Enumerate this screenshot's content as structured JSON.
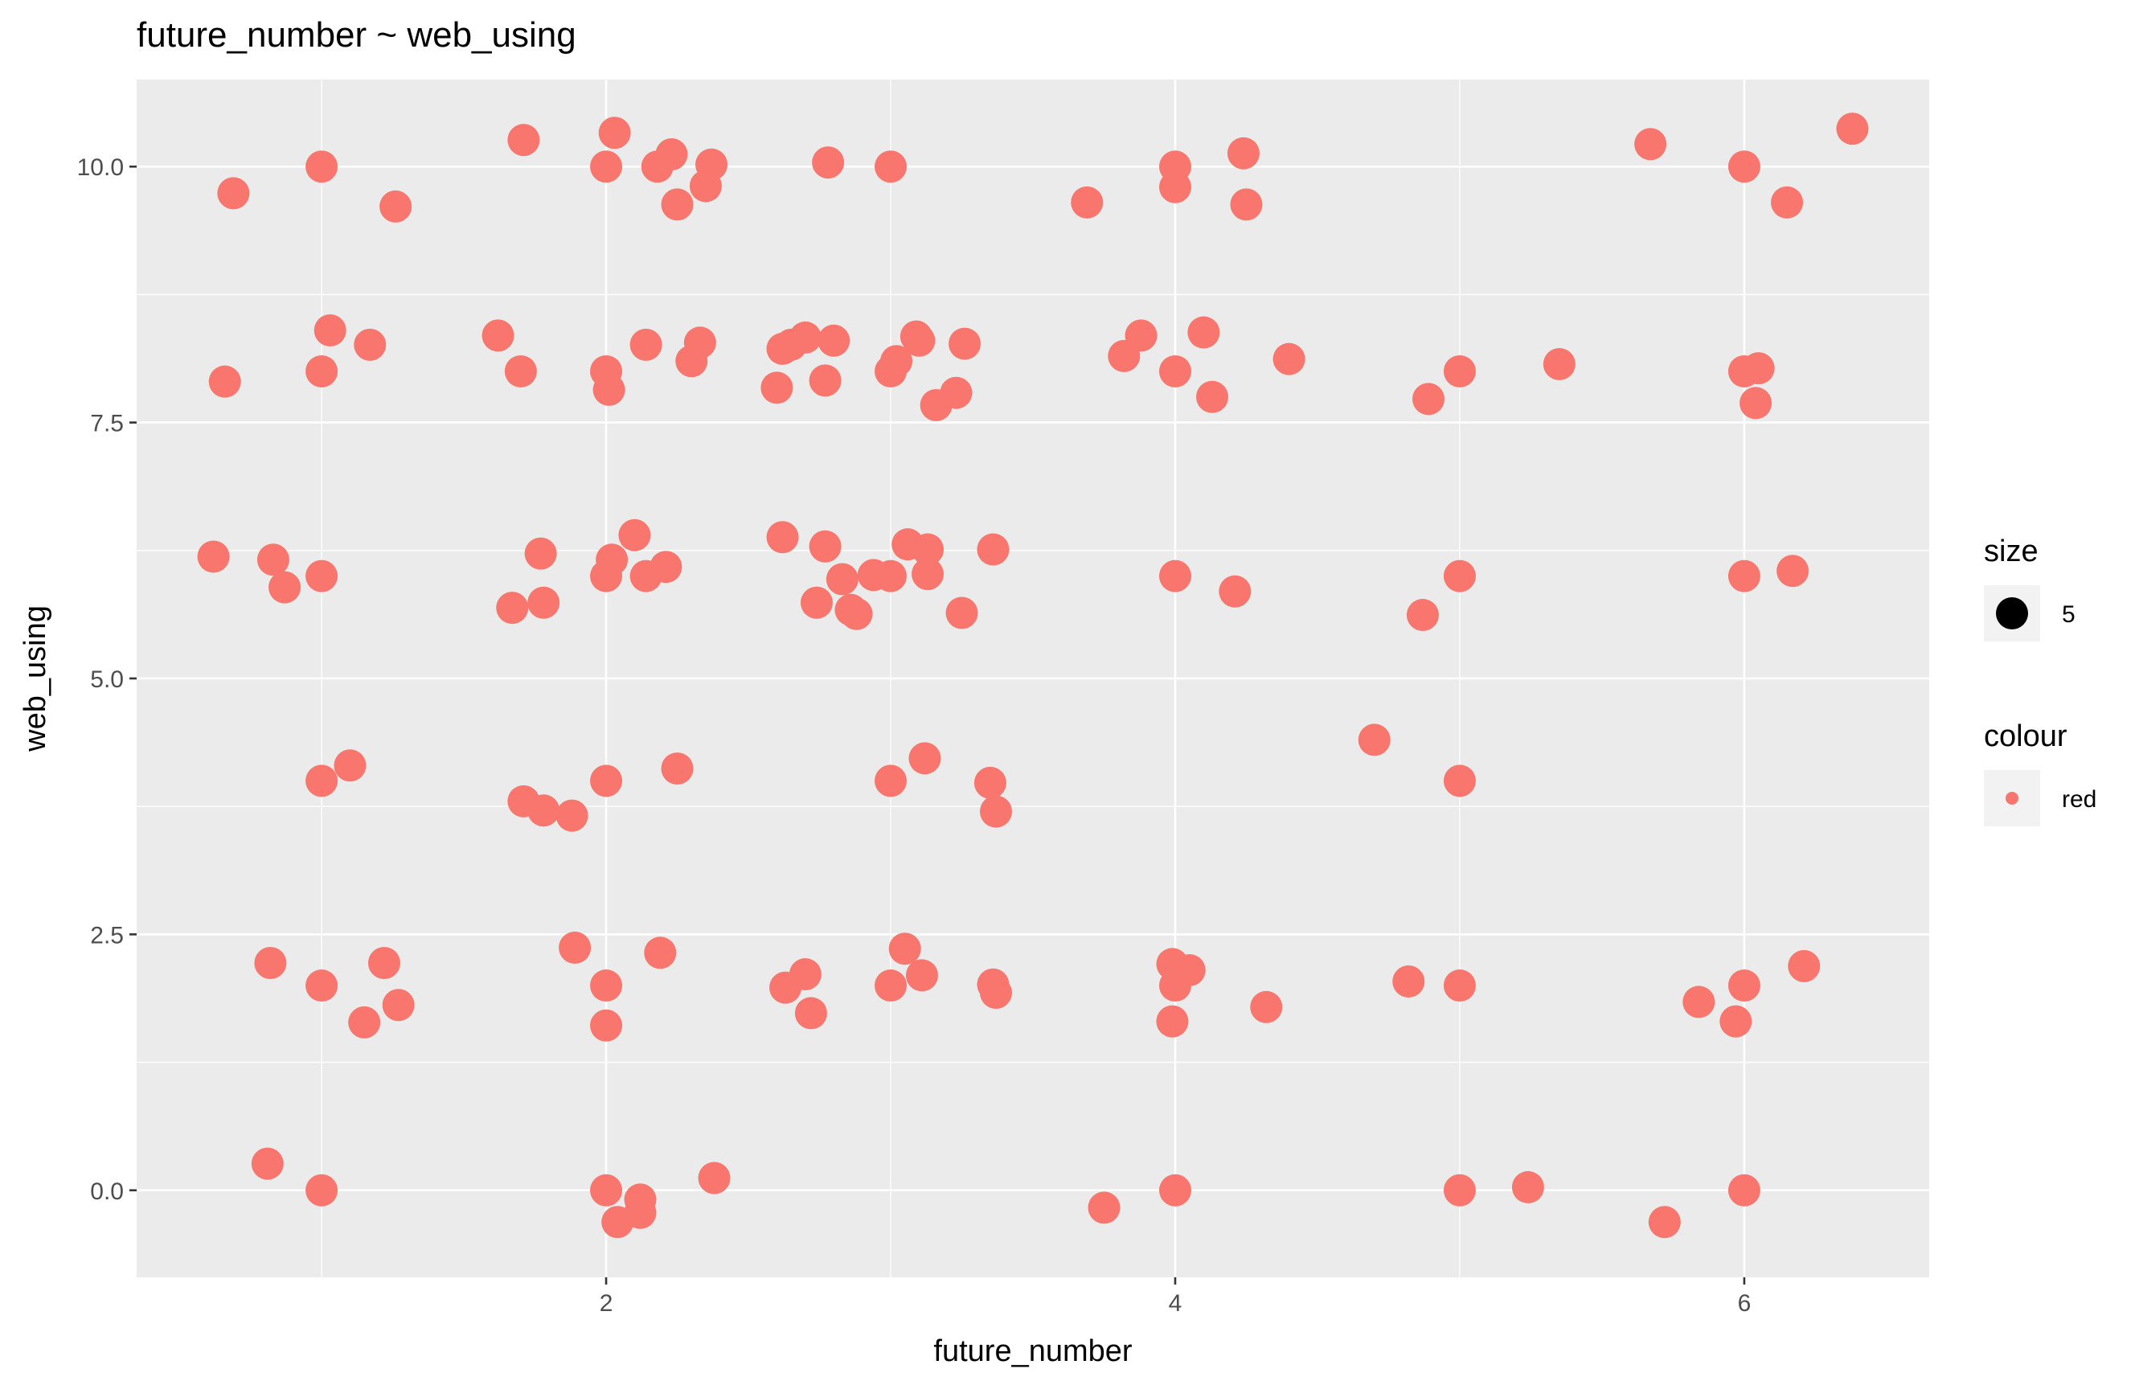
{
  "chart_data": {
    "type": "scatter",
    "title": "future_number ~ web_using",
    "xlabel": "future_number",
    "ylabel": "web_using",
    "xlim": [
      0.35,
      6.65
    ],
    "ylim": [
      -0.85,
      10.85
    ],
    "x_ticks": [
      2,
      4,
      6
    ],
    "x_tick_labels": [
      "2",
      "4",
      "6"
    ],
    "y_ticks": [
      0,
      2.5,
      5,
      7.5,
      10
    ],
    "y_tick_labels": [
      "0.0",
      "2.5",
      "5.0",
      "7.5",
      "10.0"
    ],
    "grid": true,
    "point_color": "#F8766D",
    "panel_background": "#EBEBEB",
    "legend_position": "right",
    "legend": {
      "size": {
        "title": "size",
        "label": "5"
      },
      "colour": {
        "title": "colour",
        "label": "red"
      }
    },
    "series": [
      {
        "name": "red",
        "points": [
          [
            0.69,
            9.74
          ],
          [
            1.0,
            10.0
          ],
          [
            1.26,
            9.61
          ],
          [
            1.71,
            10.26
          ],
          [
            2.03,
            10.33
          ],
          [
            2.0,
            10.0
          ],
          [
            2.18,
            10.0
          ],
          [
            2.23,
            10.12
          ],
          [
            2.25,
            9.63
          ],
          [
            2.35,
            9.81
          ],
          [
            2.37,
            10.02
          ],
          [
            2.78,
            10.04
          ],
          [
            3.0,
            10.0
          ],
          [
            3.69,
            9.65
          ],
          [
            4.0,
            10.0
          ],
          [
            4.0,
            9.8
          ],
          [
            4.24,
            10.13
          ],
          [
            4.25,
            9.63
          ],
          [
            5.67,
            10.22
          ],
          [
            6.0,
            10.0
          ],
          [
            6.15,
            9.65
          ],
          [
            6.38,
            10.37
          ],
          [
            0.66,
            7.9
          ],
          [
            1.0,
            8.0
          ],
          [
            1.03,
            8.4
          ],
          [
            1.17,
            8.26
          ],
          [
            1.62,
            8.35
          ],
          [
            1.7,
            8.0
          ],
          [
            2.0,
            8.0
          ],
          [
            2.01,
            7.82
          ],
          [
            2.14,
            8.26
          ],
          [
            2.3,
            8.1
          ],
          [
            2.33,
            8.28
          ],
          [
            2.6,
            7.84
          ],
          [
            2.62,
            8.22
          ],
          [
            2.65,
            8.26
          ],
          [
            2.7,
            8.33
          ],
          [
            2.77,
            7.91
          ],
          [
            2.8,
            8.3
          ],
          [
            3.0,
            8.0
          ],
          [
            3.02,
            8.1
          ],
          [
            3.09,
            8.34
          ],
          [
            3.1,
            8.3
          ],
          [
            3.16,
            7.67
          ],
          [
            3.23,
            7.79
          ],
          [
            3.26,
            8.27
          ],
          [
            3.82,
            8.15
          ],
          [
            3.88,
            8.35
          ],
          [
            4.0,
            8.0
          ],
          [
            4.1,
            8.38
          ],
          [
            4.13,
            7.75
          ],
          [
            4.4,
            8.12
          ],
          [
            4.89,
            7.73
          ],
          [
            5.0,
            8.0
          ],
          [
            5.35,
            8.07
          ],
          [
            6.0,
            8.0
          ],
          [
            6.05,
            8.03
          ],
          [
            6.04,
            7.69
          ],
          [
            0.62,
            6.19
          ],
          [
            0.83,
            6.16
          ],
          [
            0.87,
            5.89
          ],
          [
            1.0,
            6.0
          ],
          [
            1.67,
            5.69
          ],
          [
            1.77,
            6.22
          ],
          [
            1.78,
            5.74
          ],
          [
            2.0,
            6.0
          ],
          [
            2.02,
            6.16
          ],
          [
            2.1,
            6.4
          ],
          [
            2.14,
            6.0
          ],
          [
            2.21,
            6.09
          ],
          [
            2.62,
            6.38
          ],
          [
            2.74,
            5.74
          ],
          [
            2.77,
            6.29
          ],
          [
            2.83,
            5.97
          ],
          [
            2.86,
            5.67
          ],
          [
            2.88,
            5.63
          ],
          [
            2.94,
            6.01
          ],
          [
            3.0,
            6.0
          ],
          [
            3.06,
            6.31
          ],
          [
            3.13,
            6.26
          ],
          [
            3.13,
            6.02
          ],
          [
            3.25,
            5.64
          ],
          [
            3.36,
            6.26
          ],
          [
            4.0,
            6.0
          ],
          [
            4.21,
            5.85
          ],
          [
            4.87,
            5.62
          ],
          [
            5.0,
            6.0
          ],
          [
            6.0,
            6.0
          ],
          [
            6.17,
            6.05
          ],
          [
            1.0,
            4.0
          ],
          [
            1.1,
            4.15
          ],
          [
            1.71,
            3.8
          ],
          [
            1.78,
            3.71
          ],
          [
            1.88,
            3.66
          ],
          [
            2.0,
            4.0
          ],
          [
            2.25,
            4.12
          ],
          [
            3.0,
            4.0
          ],
          [
            3.12,
            4.22
          ],
          [
            3.35,
            3.98
          ],
          [
            3.37,
            3.7
          ],
          [
            4.7,
            4.4
          ],
          [
            5.0,
            4.0
          ],
          [
            0.82,
            2.22
          ],
          [
            1.0,
            2.0
          ],
          [
            1.15,
            1.64
          ],
          [
            1.22,
            2.22
          ],
          [
            1.27,
            1.81
          ],
          [
            1.89,
            2.37
          ],
          [
            2.0,
            2.0
          ],
          [
            2.0,
            1.61
          ],
          [
            2.19,
            2.32
          ],
          [
            2.63,
            1.98
          ],
          [
            2.7,
            2.11
          ],
          [
            2.72,
            1.73
          ],
          [
            3.0,
            2.0
          ],
          [
            3.05,
            2.36
          ],
          [
            3.11,
            2.1
          ],
          [
            3.36,
            2.01
          ],
          [
            3.37,
            1.93
          ],
          [
            3.99,
            2.21
          ],
          [
            4.0,
            2.0
          ],
          [
            4.05,
            2.15
          ],
          [
            3.99,
            1.65
          ],
          [
            4.32,
            1.79
          ],
          [
            4.82,
            2.04
          ],
          [
            5.0,
            2.0
          ],
          [
            5.84,
            1.84
          ],
          [
            5.97,
            1.65
          ],
          [
            6.0,
            2.0
          ],
          [
            6.21,
            2.19
          ],
          [
            0.81,
            0.26
          ],
          [
            1.0,
            0.0
          ],
          [
            2.0,
            0.0
          ],
          [
            2.04,
            -0.31
          ],
          [
            2.12,
            -0.09
          ],
          [
            2.12,
            -0.22
          ],
          [
            2.38,
            0.12
          ],
          [
            3.75,
            -0.17
          ],
          [
            4.0,
            0.0
          ],
          [
            5.0,
            0.0
          ],
          [
            5.24,
            0.03
          ],
          [
            5.72,
            -0.31
          ],
          [
            6.0,
            0.0
          ]
        ]
      }
    ]
  }
}
